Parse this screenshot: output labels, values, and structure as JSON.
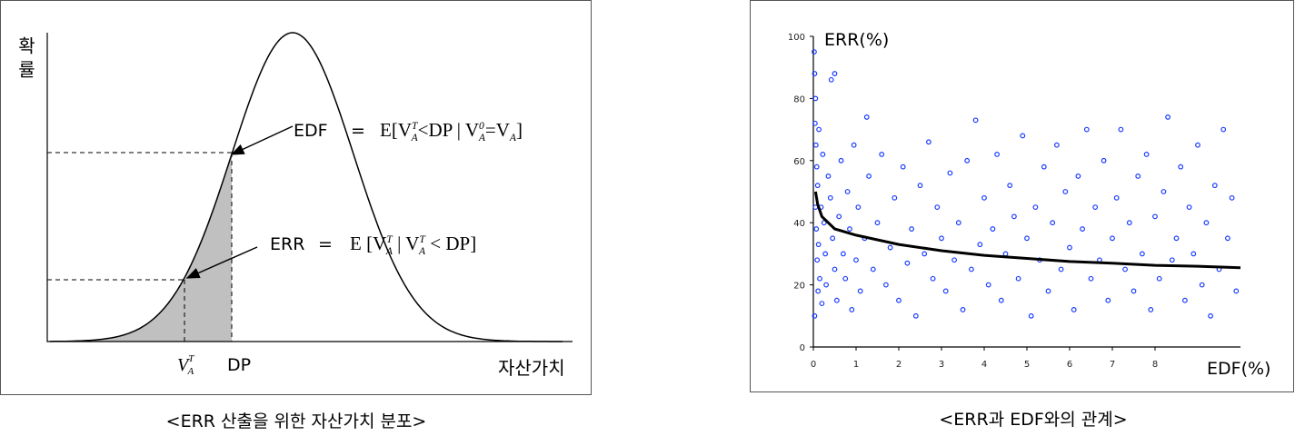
{
  "chart_data": [
    {
      "type": "distribution",
      "ylabel": "확률",
      "xlabel": "자산가치",
      "threshold_label": "DP",
      "variable_label": {
        "base": "V",
        "sup": "T",
        "sub": "A"
      },
      "edf": {
        "name": "EDF",
        "equals": "=",
        "expression": [
          {
            "text": "E[V"
          },
          {
            "sup": "T",
            "sub": "A"
          },
          {
            "text": "<DP | V"
          },
          {
            "sup": "0",
            "sub": "A"
          },
          {
            "text": "=V"
          },
          {
            "sub": "A"
          },
          {
            "text": "]"
          }
        ]
      },
      "err": {
        "name": "ERR",
        "equals": "=",
        "expression": [
          {
            "text": "E [V"
          },
          {
            "sup": "T",
            "sub": "A"
          },
          {
            "text": " | V"
          },
          {
            "sup": "T",
            "sub": "A"
          },
          {
            "text": " < DP]"
          }
        ]
      },
      "caption": "<ERR 산출을 위한 자산가치 분포>"
    },
    {
      "type": "scatter",
      "ylabel": "ERR(%)",
      "xlabel": "EDF(%)",
      "caption": "<ERR과 EDF와의 관계>",
      "xlim": [
        0,
        10
      ],
      "xticks": [
        0,
        1,
        2,
        3,
        4,
        5,
        6,
        7,
        8
      ],
      "ylim": [
        0,
        100
      ],
      "yticks": [
        0,
        20,
        40,
        60,
        80,
        100
      ],
      "points": {
        "color": "#1a3cff",
        "x": [
          0.02,
          0.03,
          0.05,
          0.04,
          0.06,
          0.08,
          0.1,
          0.05,
          0.07,
          0.12,
          0.09,
          0.15,
          0.11,
          0.2,
          0.03,
          0.18,
          0.22,
          0.25,
          0.28,
          0.3,
          0.13,
          0.35,
          0.4,
          0.45,
          0.5,
          0.5,
          0.42,
          0.55,
          0.6,
          0.65,
          0.7,
          0.75,
          0.8,
          0.85,
          0.9,
          0.95,
          1.0,
          1.05,
          1.1,
          1.2,
          1.25,
          1.3,
          1.4,
          1.5,
          1.6,
          1.7,
          1.8,
          1.9,
          2.0,
          2.1,
          2.2,
          2.3,
          2.4,
          2.5,
          2.6,
          2.7,
          2.8,
          2.9,
          3.0,
          3.1,
          3.2,
          3.3,
          3.4,
          3.5,
          3.6,
          3.7,
          3.8,
          3.9,
          4.0,
          4.1,
          4.2,
          4.3,
          4.4,
          4.5,
          4.6,
          4.7,
          4.8,
          4.9,
          5.0,
          5.1,
          5.2,
          5.3,
          5.4,
          5.5,
          5.6,
          5.7,
          5.8,
          5.9,
          6.0,
          6.1,
          6.2,
          6.3,
          6.4,
          6.5,
          6.6,
          6.7,
          6.8,
          6.9,
          7.0,
          7.1,
          7.2,
          7.3,
          7.4,
          7.5,
          7.6,
          7.7,
          7.8,
          7.9,
          8.0,
          8.1,
          8.2,
          8.3,
          8.4,
          8.5,
          8.6,
          8.7,
          8.8,
          8.9,
          9.0,
          9.1,
          9.2,
          9.3,
          9.4,
          9.5,
          9.6,
          9.7,
          9.8,
          9.9
        ],
        "values": [
          95,
          88,
          80,
          72,
          65,
          58,
          52,
          45,
          38,
          33,
          28,
          22,
          18,
          14,
          10,
          45,
          62,
          40,
          30,
          20,
          70,
          55,
          48,
          35,
          25,
          88,
          86,
          15,
          42,
          60,
          30,
          22,
          50,
          38,
          12,
          65,
          28,
          45,
          18,
          35,
          74,
          55,
          25,
          40,
          62,
          20,
          32,
          48,
          15,
          58,
          27,
          38,
          10,
          52,
          30,
          66,
          22,
          45,
          35,
          18,
          56,
          28,
          40,
          12,
          60,
          25,
          73,
          33,
          48,
          20,
          38,
          62,
          15,
          30,
          52,
          42,
          22,
          68,
          35,
          10,
          45,
          28,
          58,
          18,
          40,
          65,
          25,
          50,
          32,
          12,
          55,
          38,
          70,
          22,
          45,
          28,
          60,
          15,
          35,
          48,
          70,
          25,
          40,
          18,
          55,
          30,
          62,
          12,
          42,
          22,
          50,
          74,
          28,
          35,
          58,
          15,
          45,
          30,
          65,
          20,
          40,
          10,
          52,
          25,
          70,
          35,
          48,
          18
        ]
      },
      "trend": {
        "color": "#000000",
        "x": [
          0.05,
          0.1,
          0.2,
          0.5,
          1,
          2,
          3,
          4,
          5,
          6,
          7,
          8,
          9,
          10
        ],
        "values": [
          50,
          46,
          42,
          38,
          36,
          33,
          31,
          29.5,
          28.5,
          27.5,
          27,
          26.3,
          26,
          25.5
        ]
      }
    }
  ]
}
